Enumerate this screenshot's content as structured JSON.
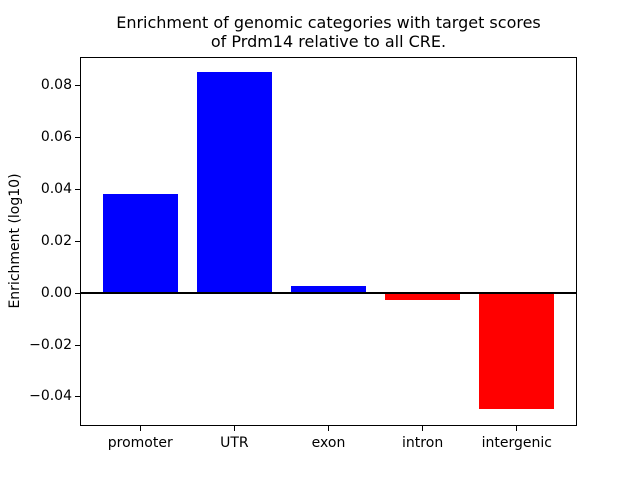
{
  "chart_data": {
    "type": "bar",
    "title": "Enrichment of genomic categories with target scores\nof Prdm14 relative to all CRE.",
    "xlabel": "",
    "ylabel": "Enrichment (log10)",
    "categories": [
      "promoter",
      "UTR",
      "exon",
      "intron",
      "intergenic"
    ],
    "values": [
      0.038,
      0.085,
      0.0025,
      -0.003,
      -0.045
    ],
    "bar_colors": [
      "#0000ff",
      "#0000ff",
      "#0000ff",
      "#ff0000",
      "#ff0000"
    ],
    "positive_color": "#0000ff",
    "negative_color": "#ff0000",
    "ylim": [
      -0.0514,
      0.0908
    ],
    "yticks": [
      -0.04,
      -0.02,
      0.0,
      0.02,
      0.04,
      0.06,
      0.08
    ],
    "ytick_labels": [
      "−0.04",
      "−0.02",
      "0.00",
      "0.02",
      "0.04",
      "0.06",
      "0.08"
    ],
    "grid": false,
    "legend": false,
    "zero_line": true,
    "axis_color": "#000000",
    "background_color": "#ffffff"
  }
}
